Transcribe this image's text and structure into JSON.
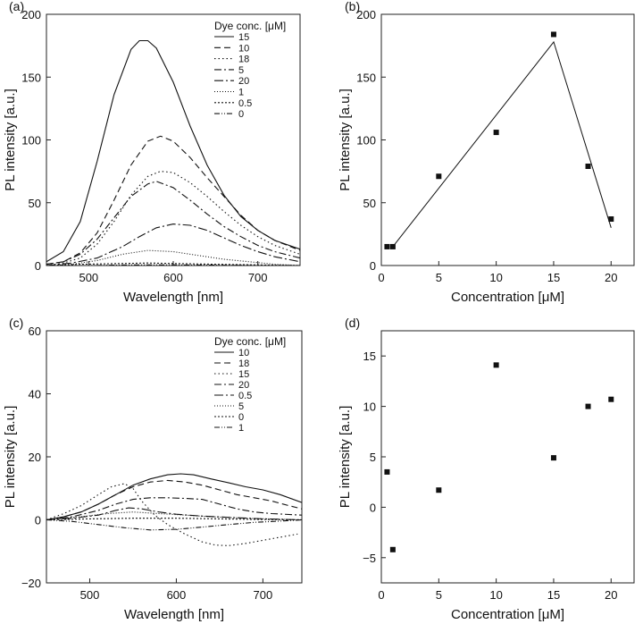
{
  "chart_data": [
    {
      "panel": "(a)",
      "type": "line",
      "xlabel": "Wavelength [nm]",
      "ylabel": "PL intensity [a.u.]",
      "xlim": [
        450,
        750
      ],
      "ylim": [
        0,
        200
      ],
      "xticks": [
        500,
        600,
        700
      ],
      "yticks": [
        0,
        50,
        100,
        150,
        200
      ],
      "legend_title": "Dye conc. [μM]",
      "legend_position": "top-right",
      "series": [
        {
          "name": "15",
          "dash": "none",
          "x": [
            450,
            470,
            490,
            510,
            530,
            550,
            560,
            570,
            580,
            600,
            620,
            640,
            660,
            680,
            700,
            720,
            750
          ],
          "y": [
            3,
            11,
            35,
            83,
            136,
            172,
            179,
            179,
            173,
            146,
            111,
            80,
            56,
            39,
            28,
            20,
            13
          ]
        },
        {
          "name": "10",
          "dash": "7,4",
          "x": [
            450,
            470,
            490,
            510,
            530,
            550,
            570,
            585,
            600,
            620,
            640,
            660,
            680,
            700,
            720,
            750
          ],
          "y": [
            1,
            3,
            10,
            26,
            52,
            80,
            99,
            103,
            99,
            86,
            70,
            55,
            40,
            28,
            20,
            12
          ]
        },
        {
          "name": "18",
          "dash": "1.5,3",
          "x": [
            450,
            470,
            490,
            510,
            530,
            550,
            570,
            585,
            600,
            620,
            640,
            660,
            680,
            700,
            720,
            750
          ],
          "y": [
            0,
            2,
            6,
            17,
            35,
            56,
            71,
            75,
            74,
            66,
            55,
            43,
            32,
            23,
            16,
            9
          ]
        },
        {
          "name": "5",
          "dash": "8,3,2,3",
          "x": [
            450,
            470,
            490,
            510,
            530,
            550,
            570,
            580,
            600,
            620,
            640,
            660,
            680,
            700,
            720,
            750
          ],
          "y": [
            1,
            3,
            9,
            21,
            38,
            55,
            65,
            67,
            62,
            52,
            41,
            31,
            23,
            16,
            11,
            6
          ]
        },
        {
          "name": "20",
          "dash": "10,3,2,3",
          "x": [
            450,
            480,
            510,
            540,
            560,
            580,
            600,
            620,
            640,
            660,
            680,
            700,
            720,
            750
          ],
          "y": [
            0,
            2,
            6,
            15,
            23,
            30,
            33,
            32,
            28,
            22,
            16,
            11,
            7,
            3
          ]
        },
        {
          "name": "1",
          "dash": "1,2",
          "x": [
            450,
            480,
            510,
            540,
            570,
            600,
            630,
            660,
            690,
            720,
            750
          ],
          "y": [
            0,
            1,
            4,
            9,
            12,
            11,
            8,
            5,
            3,
            1,
            0
          ]
        },
        {
          "name": "0.5",
          "dash": "2,2",
          "x": [
            450,
            490,
            530,
            570,
            610,
            650,
            700,
            750
          ],
          "y": [
            0,
            1,
            1.5,
            2,
            1.5,
            1,
            0.5,
            0
          ]
        },
        {
          "name": "0",
          "dash": "6,2,1,2,1,2",
          "x": [
            450,
            500,
            550,
            600,
            650,
            700,
            750
          ],
          "y": [
            0,
            0,
            0.5,
            0.5,
            0.3,
            0,
            0
          ]
        }
      ]
    },
    {
      "panel": "(b)",
      "type": "scatter",
      "xlabel": "Concentration [μM]",
      "ylabel": "PL intensity [a.u.]",
      "xlim": [
        0,
        22
      ],
      "ylim": [
        0,
        200
      ],
      "xticks": [
        0,
        5,
        10,
        15,
        20
      ],
      "yticks": [
        0,
        50,
        100,
        150,
        200
      ],
      "points": {
        "x": [
          0.5,
          1,
          5,
          10,
          15,
          18,
          20
        ],
        "y": [
          15,
          15,
          71,
          106,
          184,
          79,
          37
        ]
      },
      "fit_line": {
        "x": [
          1,
          15,
          20
        ],
        "y": [
          15,
          178,
          30
        ]
      }
    },
    {
      "panel": "(c)",
      "type": "line",
      "xlabel": "Wavelength [nm]",
      "ylabel": "PL intensity [a.u.]",
      "xlim": [
        450,
        745
      ],
      "ylim": [
        -20,
        60
      ],
      "xticks": [
        500,
        600,
        700
      ],
      "yticks": [
        -20,
        0,
        20,
        40,
        60
      ],
      "legend_title": "Dye conc. [μM]",
      "legend_position": "top-right",
      "series": [
        {
          "name": "10",
          "dash": "none",
          "x": [
            450,
            470,
            490,
            510,
            530,
            550,
            570,
            590,
            605,
            620,
            640,
            660,
            680,
            700,
            720,
            745
          ],
          "y": [
            0,
            1,
            2.5,
            5,
            8,
            11,
            13,
            14.3,
            14.6,
            14.3,
            13,
            11.8,
            10.5,
            9.5,
            8,
            5.5
          ]
        },
        {
          "name": "18",
          "dash": "7,4",
          "x": [
            450,
            470,
            490,
            510,
            530,
            550,
            570,
            590,
            610,
            630,
            650,
            670,
            690,
            710,
            730,
            745
          ],
          "y": [
            0,
            1,
            2.5,
            5,
            8,
            10.5,
            12,
            12.5,
            12,
            11,
            9.5,
            8,
            7,
            6,
            4.5,
            3.5
          ]
        },
        {
          "name": "15",
          "dash": "1.5,3",
          "x": [
            450,
            470,
            490,
            510,
            525,
            540,
            550,
            560,
            575,
            590,
            610,
            630,
            645,
            660,
            680,
            700,
            720,
            740
          ],
          "y": [
            0,
            2,
            4.5,
            8,
            10.5,
            11.5,
            10,
            6,
            1.5,
            -1.5,
            -4.5,
            -7,
            -8,
            -8.2,
            -7.5,
            -6.5,
            -5.5,
            -4.5
          ]
        },
        {
          "name": "20",
          "dash": "8,3,2,3",
          "x": [
            450,
            480,
            510,
            530,
            550,
            570,
            590,
            610,
            630,
            650,
            670,
            690,
            710,
            745
          ],
          "y": [
            0,
            1,
            3,
            5,
            6.5,
            7,
            7,
            6.8,
            6.5,
            5,
            3.5,
            2.5,
            2,
            1.5
          ]
        },
        {
          "name": "0.5",
          "dash": "10,3,2,3",
          "x": [
            450,
            480,
            510,
            530,
            545,
            560,
            580,
            600,
            630,
            660,
            700,
            745
          ],
          "y": [
            0,
            0.5,
            1.5,
            3,
            3.8,
            3.5,
            2.5,
            1.8,
            1.2,
            0.8,
            0.3,
            0
          ]
        },
        {
          "name": "5",
          "dash": "1,2",
          "x": [
            450,
            490,
            520,
            550,
            580,
            610,
            640,
            680,
            720,
            745
          ],
          "y": [
            0,
            1,
            2,
            2.5,
            2,
            1.5,
            1,
            0.5,
            0.2,
            0
          ]
        },
        {
          "name": "0",
          "dash": "2,2",
          "x": [
            450,
            500,
            550,
            600,
            650,
            700,
            745
          ],
          "y": [
            0,
            0.3,
            0.5,
            0.5,
            0.3,
            0.1,
            0
          ]
        },
        {
          "name": "1",
          "dash": "6,2,1,2,1,2",
          "x": [
            450,
            480,
            510,
            540,
            570,
            600,
            630,
            660,
            690,
            720,
            745
          ],
          "y": [
            0,
            -0.5,
            -1.5,
            -2.5,
            -3.2,
            -3,
            -2.3,
            -1.5,
            -0.8,
            -0.4,
            0
          ]
        }
      ]
    },
    {
      "panel": "(d)",
      "type": "scatter",
      "xlabel": "Concentration [μM]",
      "ylabel": "PL intensity [a.u.]",
      "xlim": [
        0,
        22
      ],
      "ylim": [
        -7.5,
        17.5
      ],
      "xticks": [
        0,
        5,
        10,
        15,
        20
      ],
      "yticks": [
        -5,
        0,
        5,
        10,
        15
      ],
      "points": {
        "x": [
          0.5,
          1,
          5,
          10,
          15,
          18,
          20
        ],
        "y": [
          3.5,
          -4.2,
          1.7,
          14.1,
          4.9,
          10.0,
          10.7
        ]
      }
    }
  ]
}
